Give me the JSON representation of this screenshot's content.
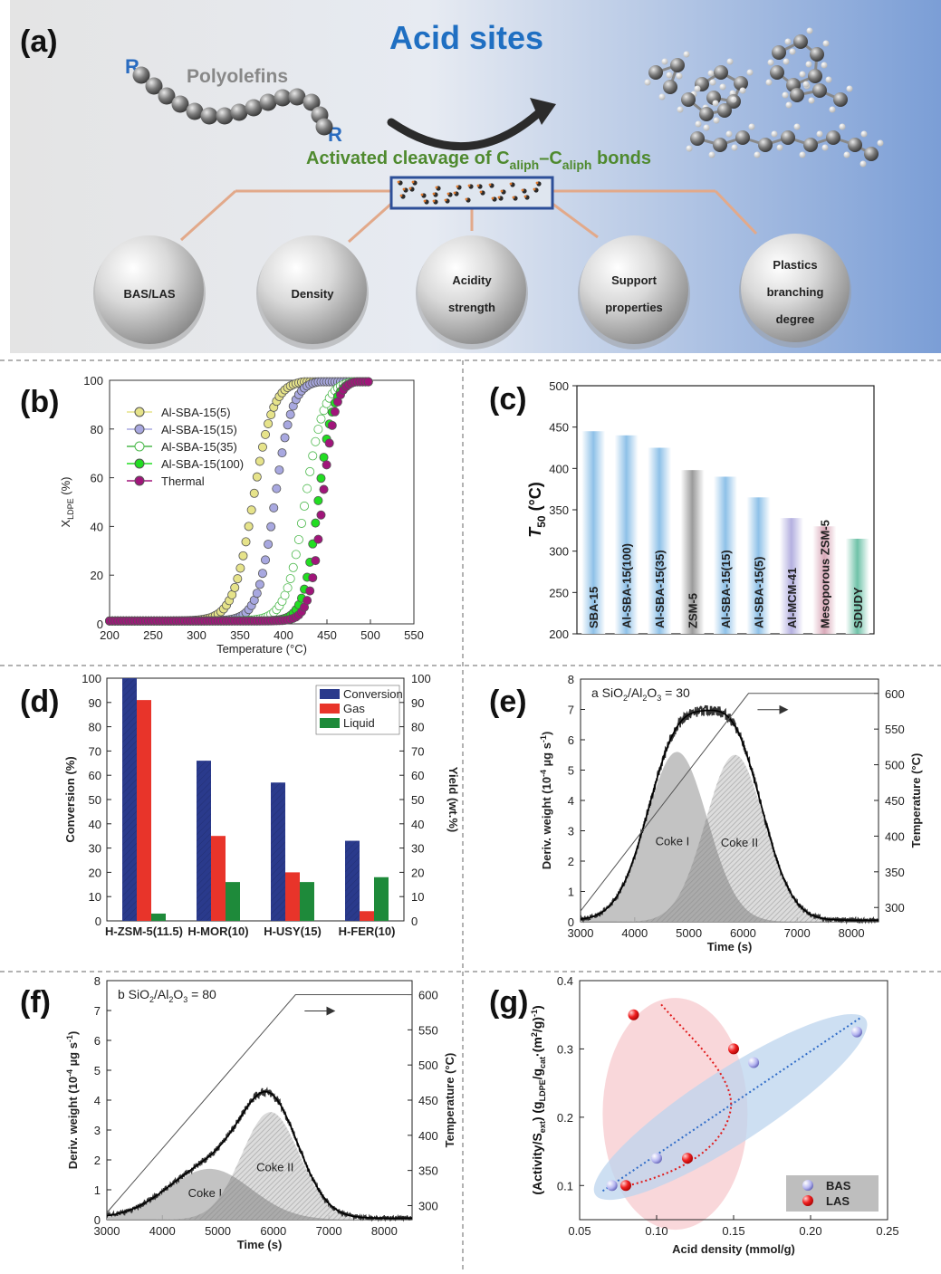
{
  "panel_a": {
    "letter": "(a)",
    "title": "Acid sites",
    "polyolefins_label": "Polyolefins",
    "r_label": "R",
    "cleavage_text": "Activated cleavage of C",
    "cleavage_sub1": "aliph",
    "cleavage_dash": "–C",
    "cleavage_sub2": "aliph",
    "cleavage_end": " bonds",
    "factors": [
      [
        "BAS/LAS"
      ],
      [
        "Density"
      ],
      [
        "Acidity",
        "strength"
      ],
      [
        "Support",
        "properties"
      ],
      [
        "Plastics",
        "branching",
        "degree"
      ]
    ],
    "colors": {
      "title": "#1f6fc2",
      "factor_text": "#1c6bbf",
      "green": "#4f8a2f",
      "line": "#e2a98a"
    }
  },
  "chart_data": [
    {
      "panel": "(b)",
      "type": "scatter",
      "xlabel": "Temperature (°C)",
      "ylabel": "X",
      "ylabel_sub": "LDPE",
      "ylabel_unit": " (%)",
      "xlim": [
        200,
        550
      ],
      "ylim": [
        0,
        100
      ],
      "xticks": [
        200,
        250,
        300,
        350,
        400,
        450,
        500,
        550
      ],
      "yticks": [
        0,
        20,
        40,
        60,
        80,
        100
      ],
      "series": [
        {
          "name": "Al-SBA-15(5)",
          "color": "#e6e38a",
          "filled": true,
          "t50": 365,
          "width": 23
        },
        {
          "name": "Al-SBA-15(15)",
          "color": "#a8a8e0",
          "filled": true,
          "t50": 390,
          "width": 20
        },
        {
          "name": "Al-SBA-15(35)",
          "color": "#4bb84b",
          "filled": false,
          "t50": 425,
          "width": 22
        },
        {
          "name": "Al-SBA-15(100)",
          "color": "#22dd22",
          "filled": true,
          "t50": 440,
          "width": 17
        },
        {
          "name": "Thermal",
          "color": "#a0157a",
          "filled": true,
          "t50": 445,
          "width": 15
        }
      ]
    },
    {
      "panel": "(c)",
      "type": "bar",
      "ylabel": "T",
      "ylabel_sub": "50",
      "ylabel_unit": " (°C)",
      "ylim": [
        200,
        500
      ],
      "yticks": [
        200,
        250,
        300,
        350,
        400,
        450,
        500
      ],
      "categories": [
        "SBA-15",
        "Al-SBA-15(100)",
        "Al-SBA-15(35)",
        "ZSM-5",
        "Al-SBA-15(15)",
        "Al-SBA-15(5)",
        "Al-MCM-41",
        "Mesoporous ZSM-5",
        "SDUDY"
      ],
      "values": [
        445,
        440,
        425,
        398,
        390,
        365,
        340,
        330,
        315
      ],
      "bar_colors": [
        "#8ec1e8",
        "#8ec1e8",
        "#8ec1e8",
        "#9a9a9a",
        "#8ec1e8",
        "#8ec1e8",
        "#b4b0e0",
        "#d9a8b8",
        "#6fc2a8"
      ]
    },
    {
      "panel": "(d)",
      "type": "bar",
      "ylabel": "Conversion (%)",
      "ylabel_right": "Yield (wt.%)",
      "ylim": [
        0,
        100
      ],
      "yticks": [
        0,
        10,
        20,
        30,
        40,
        50,
        60,
        70,
        80,
        90,
        100
      ],
      "categories": [
        "H-ZSM-5(11.5)",
        "H-MOR(10)",
        "H-USY(15)",
        "H-FER(10)"
      ],
      "series": [
        {
          "name": "Conversion",
          "color": "#2a3a8c",
          "values": [
            100,
            66,
            57,
            33
          ]
        },
        {
          "name": "Gas",
          "color": "#e8342a",
          "values": [
            91,
            35,
            20,
            4
          ]
        },
        {
          "name": "Liquid",
          "color": "#1e8a3a",
          "values": [
            3,
            16,
            16,
            18
          ]
        }
      ]
    },
    {
      "panel": "(e)",
      "type": "line",
      "annotation": "a  SiO",
      "annotation_sub1": "2",
      "annotation_mid": "/Al",
      "annotation_sub2": "2",
      "annotation_mid2": "O",
      "annotation_sub3": "3",
      "annotation_end": " = 30",
      "xlabel": "Time (s)",
      "ylabel": "Deriv. weight (10",
      "ylabel_sup": "-4",
      "ylabel_end": " µg s",
      "ylabel_sup2": "-1",
      "ylabel_close": ")",
      "ylabel_right": "Temperature (°C)",
      "xlim": [
        3000,
        8500
      ],
      "ylim": [
        0,
        8
      ],
      "xticks": [
        3000,
        4000,
        5000,
        6000,
        7000,
        8000
      ],
      "yticks": [
        0,
        1,
        2,
        3,
        4,
        5,
        6,
        7,
        8
      ],
      "y2lim": [
        280,
        620
      ],
      "y2ticks": [
        300,
        350,
        400,
        450,
        500,
        550,
        600
      ],
      "peaks": [
        {
          "name": "Coke I",
          "center": 4780,
          "height": 5.6,
          "sigma": 560
        },
        {
          "name": "Coke II",
          "center": 5850,
          "height": 5.5,
          "sigma": 540
        }
      ],
      "temperature_ramp": {
        "start": [
          3000,
          295
        ],
        "end": [
          6100,
          600
        ]
      }
    },
    {
      "panel": "(f)",
      "type": "line",
      "annotation": "b  SiO",
      "annotation_sub1": "2",
      "annotation_mid": "/Al",
      "annotation_sub2": "2",
      "annotation_mid2": "O",
      "annotation_sub3": "3",
      "annotation_end": " = 80",
      "xlabel": "Time (s)",
      "ylabel": "Deriv. weight (10",
      "ylabel_sup": "-4",
      "ylabel_end": " µg s",
      "ylabel_sup2": "-1",
      "ylabel_close": ")",
      "ylabel_right": "Temperature (°C)",
      "xlim": [
        3000,
        8500
      ],
      "ylim": [
        0,
        8
      ],
      "xticks": [
        3000,
        4000,
        5000,
        6000,
        7000,
        8000
      ],
      "yticks": [
        0,
        1,
        2,
        3,
        4,
        5,
        6,
        7,
        8
      ],
      "y2lim": [
        280,
        620
      ],
      "y2ticks": [
        300,
        350,
        400,
        450,
        500,
        550,
        600
      ],
      "peaks": [
        {
          "name": "Coke I",
          "center": 4850,
          "height": 1.7,
          "sigma": 750
        },
        {
          "name": "Coke II",
          "center": 5950,
          "height": 3.6,
          "sigma": 520
        }
      ],
      "temperature_ramp": {
        "start": [
          3000,
          290
        ],
        "end": [
          6400,
          600
        ]
      }
    },
    {
      "panel": "(g)",
      "type": "scatter",
      "xlabel": "Acid density (mmol/g)",
      "ylabel": "(Activity/S",
      "ylabel_sub1": "ext",
      "ylabel_mid": ") (g",
      "ylabel_sub2": "LDPE",
      "ylabel_mid2": "/g",
      "ylabel_sub3": "cat",
      "ylabel_mid3": "·(m",
      "ylabel_sup": "2",
      "ylabel_end": "/g)",
      "ylabel_sup2": "-1",
      "ylabel_close": ")",
      "xlim": [
        0.05,
        0.25
      ],
      "ylim": [
        0.05,
        0.4
      ],
      "xticks": [
        0.05,
        0.1,
        0.15,
        0.2,
        0.25
      ],
      "xtick_labels": [
        "0.05",
        "0.10",
        "0.15",
        "0.20",
        "0.25"
      ],
      "yticks": [
        0.1,
        0.2,
        0.3,
        0.4
      ],
      "ytick_labels": [
        "0.1",
        "0.2",
        "0.3",
        "0.4"
      ],
      "series": [
        {
          "name": "BAS",
          "color": "#8a8ad8",
          "points": [
            [
              0.071,
              0.1
            ],
            [
              0.1,
              0.14
            ],
            [
              0.163,
              0.28
            ],
            [
              0.23,
              0.325
            ]
          ]
        },
        {
          "name": "LAS",
          "color": "#e81e1e",
          "points": [
            [
              0.08,
              0.1
            ],
            [
              0.085,
              0.35
            ],
            [
              0.12,
              0.14
            ],
            [
              0.15,
              0.3
            ]
          ]
        }
      ]
    }
  ]
}
